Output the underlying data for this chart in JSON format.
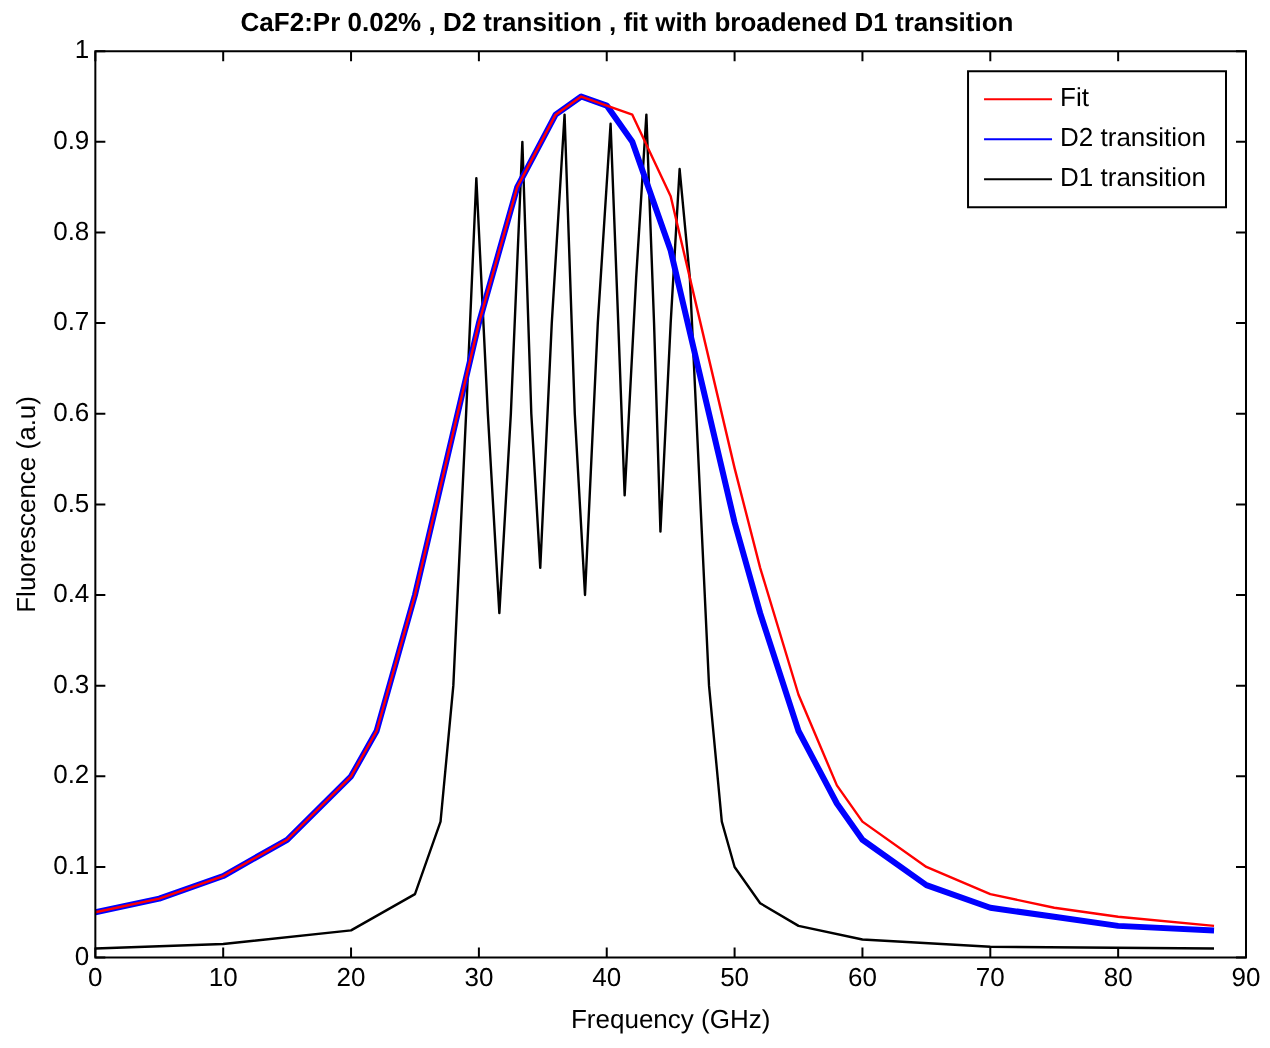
{
  "chart_data": {
    "type": "line",
    "title": "CaF2:Pr 0.02% , D2 transition , fit with broadened D1 transition",
    "xlabel": "Frequency (GHz)",
    "ylabel": "Fluorescence (a.u)",
    "xlim": [
      0,
      90
    ],
    "xticks": [
      0,
      10,
      20,
      30,
      40,
      50,
      60,
      70,
      80,
      90
    ],
    "ylim": [
      0,
      1
    ],
    "yticks": [
      0,
      0.1,
      0.2,
      0.3,
      0.4,
      0.5,
      0.6,
      0.7,
      0.8,
      0.9,
      1
    ],
    "grid": false,
    "legend": "top right",
    "marker": "none",
    "line_style": "solid",
    "series": [
      {
        "name": "Fit",
        "color": "#ff0000",
        "x": [
          0,
          5,
          10,
          15,
          20,
          22,
          25,
          27,
          30,
          33,
          36,
          38,
          40,
          42,
          45,
          48,
          50,
          52,
          55,
          58,
          60,
          65,
          70,
          75,
          80,
          87.5
        ],
        "values": [
          0.05,
          0.065,
          0.09,
          0.13,
          0.2,
          0.25,
          0.4,
          0.52,
          0.7,
          0.85,
          0.93,
          0.95,
          0.94,
          0.93,
          0.84,
          0.66,
          0.54,
          0.43,
          0.29,
          0.19,
          0.15,
          0.1,
          0.07,
          0.055,
          0.045,
          0.035
        ]
      },
      {
        "name": "D2 transition",
        "color": "#0000ff",
        "x": [
          0,
          5,
          10,
          15,
          20,
          22,
          25,
          27,
          30,
          33,
          36,
          38,
          40,
          42,
          45,
          48,
          50,
          52,
          55,
          58,
          60,
          65,
          70,
          75,
          80,
          87.5
        ],
        "values": [
          0.05,
          0.065,
          0.09,
          0.13,
          0.2,
          0.25,
          0.4,
          0.52,
          0.7,
          0.85,
          0.93,
          0.95,
          0.94,
          0.9,
          0.78,
          0.6,
          0.48,
          0.38,
          0.25,
          0.17,
          0.13,
          0.08,
          0.055,
          0.045,
          0.035,
          0.03
        ]
      },
      {
        "name": "D1 transition",
        "color": "#000000",
        "x": [
          0,
          10,
          20,
          25,
          27,
          28,
          29,
          29.8,
          30.7,
          31.6,
          32.5,
          33.4,
          34.1,
          34.8,
          35.7,
          36.7,
          37.5,
          38.3,
          39.3,
          40.3,
          40.9,
          41.4,
          42.3,
          43.1,
          43.7,
          44.2,
          45,
          45.7,
          46.5,
          47,
          48,
          49,
          50,
          52,
          55,
          60,
          70,
          87.5
        ],
        "values": [
          0.01,
          0.015,
          0.03,
          0.07,
          0.15,
          0.3,
          0.6,
          0.86,
          0.6,
          0.38,
          0.6,
          0.9,
          0.6,
          0.43,
          0.7,
          0.93,
          0.6,
          0.4,
          0.7,
          0.92,
          0.7,
          0.51,
          0.75,
          0.93,
          0.7,
          0.47,
          0.7,
          0.87,
          0.75,
          0.6,
          0.3,
          0.15,
          0.1,
          0.06,
          0.035,
          0.02,
          0.012,
          0.01
        ]
      }
    ]
  }
}
